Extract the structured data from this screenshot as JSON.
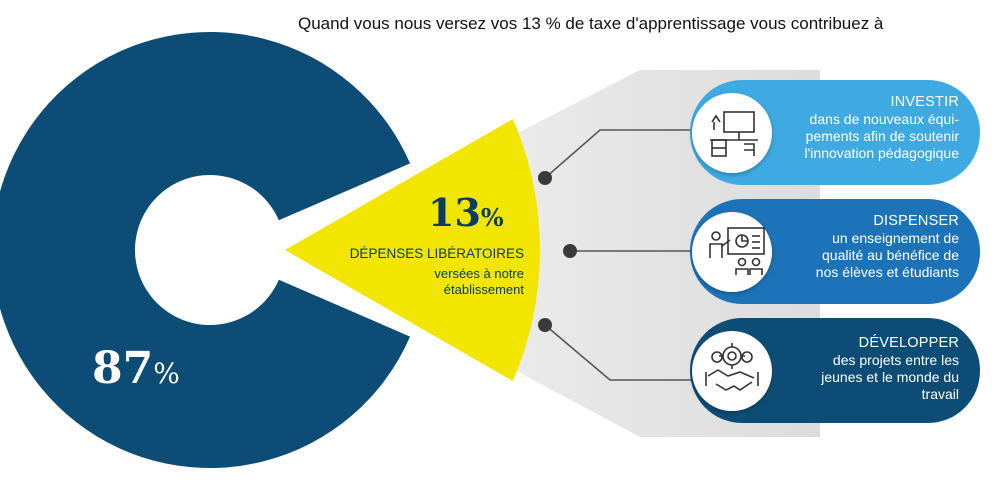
{
  "title": "Quand vous nous versez vos 13 % de taxe d'apprentissage vous contribuez à",
  "donut": {
    "main_value": "87",
    "main_suffix": "%",
    "slice_value": "13",
    "slice_suffix": "%",
    "slice_label": "DÉPENSES LIBÉRATOIRES",
    "slice_sublabel_1": "versées à notre",
    "slice_sublabel_2": "établissement"
  },
  "chart_data": {
    "type": "pie",
    "categories": [
      "",
      "DÉPENSES LIBÉRATOIRES"
    ],
    "values": [
      87,
      13
    ]
  },
  "items": [
    {
      "heading": "INVESTIR",
      "lines": [
        "dans de nouveaux équi-",
        "pements afin de soutenir",
        "l'innovation pédagogique"
      ],
      "icon": "desk-workstation-icon"
    },
    {
      "heading": "DISPENSER",
      "lines": [
        "un enseignement de",
        "qualité au bénéfice de",
        "nos élèves et étudiants"
      ],
      "icon": "teacher-presentation-icon"
    },
    {
      "heading": "DÉVELOPPER",
      "lines": [
        "des projets entre les",
        "jeunes et le monde du",
        "travail"
      ],
      "icon": "handshake-gears-icon"
    }
  ],
  "colors": {
    "donut": "#0d4d75",
    "slice": "#f2e600",
    "item_1": "#3fa9e1",
    "item_2": "#1d73b7",
    "item_3": "#0d4d75",
    "connector": "#555555",
    "backdrop": "#e3e3e3"
  }
}
